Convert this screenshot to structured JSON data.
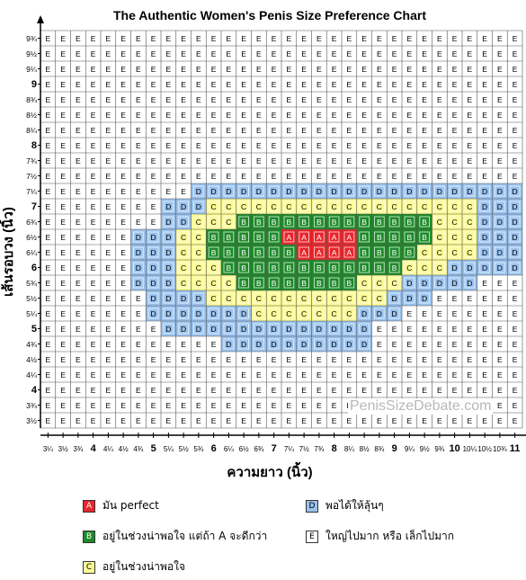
{
  "chart_data": {
    "type": "heatmap",
    "title": "The Authentic Women's Penis Size Preference Chart",
    "xlabel": "ความยาว (นิ้ว)",
    "ylabel": "เส้นรอบวง (นิ้ว)",
    "x": [
      "3¼",
      "3½",
      "3¾",
      "4",
      "4¼",
      "4½",
      "4¾",
      "5",
      "5¼",
      "5½",
      "5¾",
      "6",
      "6¼",
      "6½",
      "6¾",
      "7",
      "7¼",
      "7½",
      "7¾",
      "8",
      "8¼",
      "8½",
      "8¾",
      "9",
      "9¼",
      "9½",
      "9¾",
      "10",
      "10¼",
      "10½",
      "10¾",
      "11"
    ],
    "y": [
      "9¾",
      "9½",
      "9¼",
      "9",
      "8¾",
      "8½",
      "8¼",
      "8",
      "7¾",
      "7½",
      "7¼",
      "7",
      "6¾",
      "6½",
      "6¼",
      "6",
      "5¾",
      "5½",
      "5¼",
      "5",
      "4¾",
      "4½",
      "4¼",
      "4",
      "3¾",
      "3½"
    ],
    "x_tick_labels": [
      "3¼",
      "3½",
      "3¾",
      "4",
      "4¼",
      "4½",
      "4¾",
      "5",
      "5¼",
      "5½",
      "5¾",
      "6",
      "6¼",
      "6½",
      "6¾",
      "7",
      "7¼",
      "7½",
      "7¾",
      "8",
      "8¼",
      "8½",
      "8¾",
      "9",
      "9¼",
      "9½",
      "9¾",
      "10",
      "10¼",
      "10½",
      "10¾",
      "11"
    ],
    "y_tick_labels": [
      "9¾",
      "9½",
      "9¼",
      "9",
      "8¾",
      "8½",
      "8¼",
      "8",
      "7¾",
      "7½",
      "7¼",
      "7",
      "6¾",
      "6½",
      "6¼",
      "6",
      "5¾",
      "5½",
      "5¼",
      "5",
      "4¾",
      "4½",
      "4¼",
      "4",
      "3¾",
      "3½"
    ],
    "bold_x": [
      "4",
      "5",
      "6",
      "7",
      "8",
      "9",
      "10",
      "11"
    ],
    "bold_y": [
      "9",
      "8",
      "7",
      "6",
      "5",
      "4"
    ],
    "grid": true,
    "rows": [
      "EEEEEEEEEEEEEEEEEEEEEEEEEEEEEEEE",
      "EEEEEEEEEEEEEEEEEEEEEEEEEEEEEEEE",
      "EEEEEEEEEEEEEEEEEEEEEEEEEEEEEEEE",
      "EEEEEEEEEEEEEEEEEEEEEEEEEEEEEEEE",
      "EEEEEEEEEEEEEEEEEEEEEEEEEEEEEEEE",
      "EEEEEEEEEEEEEEEEEEEEEEEEEEEEEEEE",
      "EEEEEEEEEEEEEEEEEEEEEEEEEEEEEEEE",
      "EEEEEEEEEEEEEEEEEEEEEEEEEEEEEEEE",
      "EEEEEEEEEEEEEEEEEEEEEEEEEEEEEEEE",
      "EEEEEEEEEEEEEEEEEEEEEEEEEEEEEEEE",
      "EEEEEEEEEEDDDDDDDDDDDDDDDDDDDDDD",
      "EEEEEEEEDDDCCCCCCCCCCCCCCCCCCDDD",
      "EEEEEEEEDDCCCBBBBBBBBBBBBBCCCDDD",
      "EEEEEEDDDCCBBBBBAAAAABBBBBCCCDDD",
      "EEEEEEDDDCCBBBBBBAAAABBBBCCCCDDD",
      "EEEEEEDDDCCCBBBBBBBBBBBBCCCDDDDD",
      "EEEEEEDDDCCCCBBBBBBBBCCCDDDDDEEE",
      "EEEEEEEDDDDCCCCCCCCCCCCDDDEEEEEE",
      "EEEEEEEDDDDDDDCCCCCCCDDDEEEEEEEE",
      "EEEEEEEEDDDDDDDDDDDDDDEEEEEEEEEE",
      "EEEEEEEEEEEEDDDDDDDDDDEEEEEEEEEE",
      "EEEEEEEEEEEEEEEEEEEEEEEEEEEEEEEE",
      "EEEEEEEEEEEEEEEEEEEEEEEEEEEEEEEE",
      "EEEEEEEEEEEEEEEEEEEEEEEEEEEEEEEE",
      "EEEEEEEEEEEEEEEEEEEEEEEEEEEEEEEE",
      "EEEEEEEEEEEEEEEEEEEEEEEEEEEEEEEE"
    ],
    "categories": {
      "A": {
        "label": "มัน perfect",
        "color": "#e8262c",
        "text_color": "#ffffff"
      },
      "B": {
        "label": "อยู่ในช่วงน่าพอใจ แต่ถ้า A จะดีกว่า",
        "color": "#1e8a2a",
        "text_color": "#ffffff"
      },
      "C": {
        "label": "อยู่ในช่วงน่าพอใจ",
        "color": "#fbfb96",
        "text_color": "#000000"
      },
      "D": {
        "label": "พอได้ให้ลุ้นๆ",
        "color": "#99c2ee",
        "text_color": "#000000"
      },
      "E": {
        "label": "ใหญ่ไปมาก หรือ เล็กไปมาก",
        "color": "#ffffff",
        "text_color": "#000000"
      }
    },
    "legend": {
      "placement": "bottom",
      "items": [
        {
          "code": "A",
          "label": "มัน perfect"
        },
        {
          "code": "D",
          "label": "พอได้ให้ลุ้นๆ"
        },
        {
          "code": "B",
          "label": "อยู่ในช่วงน่าพอใจ แต่ถ้า A จะดีกว่า"
        },
        {
          "code": "E",
          "label": "ใหญ่ไปมาก หรือ เล็กไปมาก"
        },
        {
          "code": "C",
          "label": "อยู่ในช่วงน่าพอใจ"
        }
      ]
    }
  },
  "watermark": "PenisSizeDebate.com"
}
